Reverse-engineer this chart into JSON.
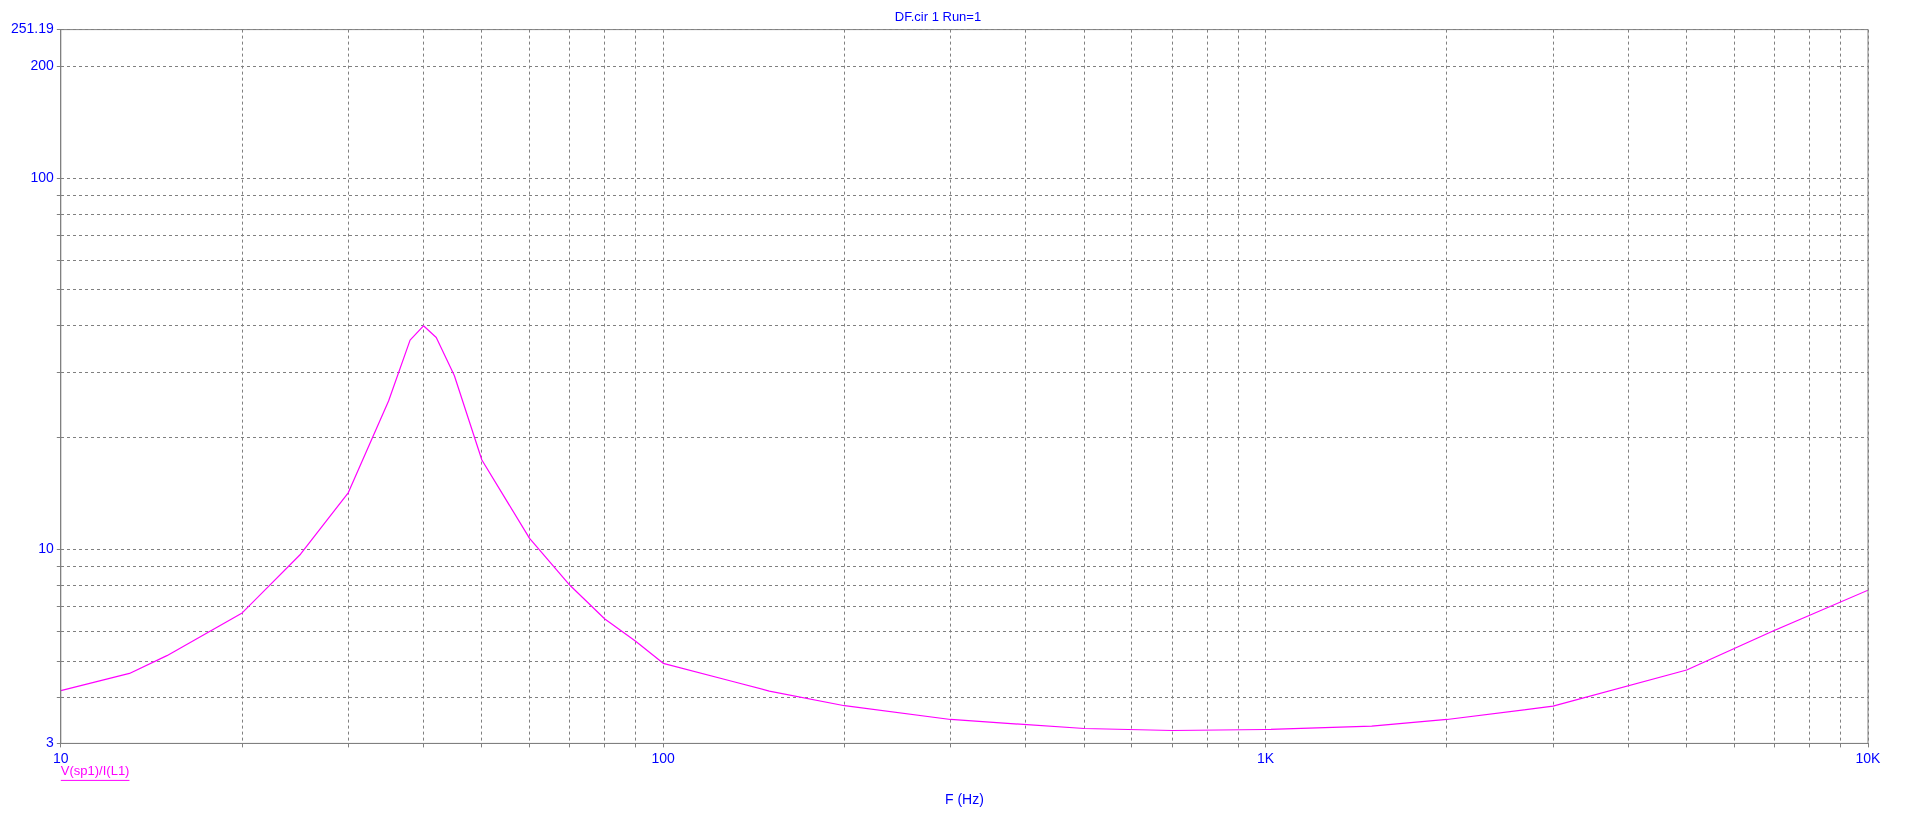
{
  "chart_data": {
    "type": "line",
    "title": "DF.cir 1 Run=1",
    "xlabel": "F (Hz)",
    "log": "xy",
    "grid": true,
    "legend": "bottom left",
    "x": [
      10,
      13,
      15,
      20,
      25,
      30,
      35,
      38,
      40,
      42,
      45,
      50,
      60,
      70,
      80,
      90,
      100,
      130,
      150,
      200,
      300,
      500,
      700,
      1000,
      1500,
      2000,
      3000,
      5000,
      7000,
      10000
    ],
    "series": [
      {
        "name": "V(sp1)/I(L1)",
        "color": "#ff00ff",
        "values": [
          4.16,
          4.63,
          5.17,
          6.74,
          9.7,
          14.2,
          25.1,
          36.6,
          40,
          37.2,
          29.4,
          17.4,
          10.7,
          8.0,
          6.49,
          5.65,
          4.93,
          4.41,
          4.15,
          3.79,
          3.48,
          3.29,
          3.25,
          3.27,
          3.34,
          3.48,
          3.78,
          4.73,
          6.05,
          7.76
        ]
      }
    ],
    "xlim": [
      10,
      10000
    ],
    "ylim": [
      3,
      251.19
    ],
    "xticks": [
      10,
      {
        "value": 20,
        "label": null
      },
      {
        "value": 30,
        "label": null
      },
      {
        "value": 40,
        "label": null
      },
      {
        "value": 50,
        "label": null
      },
      {
        "value": 60,
        "label": null
      },
      {
        "value": 70,
        "label": null
      },
      {
        "value": 80,
        "label": null
      },
      {
        "value": 90,
        "label": null
      },
      100,
      {
        "value": 200,
        "label": null
      },
      {
        "value": 300,
        "label": null
      },
      {
        "value": 400,
        "label": null
      },
      {
        "value": 500,
        "label": null
      },
      {
        "value": 600,
        "label": null
      },
      {
        "value": 700,
        "label": null
      },
      {
        "value": 800,
        "label": null
      },
      {
        "value": 900,
        "label": null
      },
      {
        "value": 1000,
        "label": "1K"
      },
      {
        "value": 2000,
        "label": null
      },
      {
        "value": 3000,
        "label": null
      },
      {
        "value": 4000,
        "label": null
      },
      {
        "value": 5000,
        "label": null
      },
      {
        "value": 6000,
        "label": null
      },
      {
        "value": 7000,
        "label": null
      },
      {
        "value": 8000,
        "label": null
      },
      {
        "value": 9000,
        "label": null
      },
      {
        "value": 10000,
        "label": "10K"
      }
    ],
    "yticks": [
      3,
      {
        "value": 4,
        "label": null
      },
      {
        "value": 5,
        "label": null
      },
      {
        "value": 6,
        "label": null
      },
      {
        "value": 7,
        "label": null
      },
      {
        "value": 8,
        "label": null
      },
      {
        "value": 9,
        "label": null
      },
      10,
      {
        "value": 20,
        "label": null
      },
      {
        "value": 30,
        "label": null
      },
      {
        "value": 40,
        "label": null
      },
      {
        "value": 50,
        "label": null
      },
      {
        "value": 60,
        "label": null
      },
      {
        "value": 70,
        "label": null
      },
      {
        "value": 80,
        "label": null
      },
      {
        "value": 90,
        "label": null
      },
      100,
      200,
      251.19
    ]
  }
}
